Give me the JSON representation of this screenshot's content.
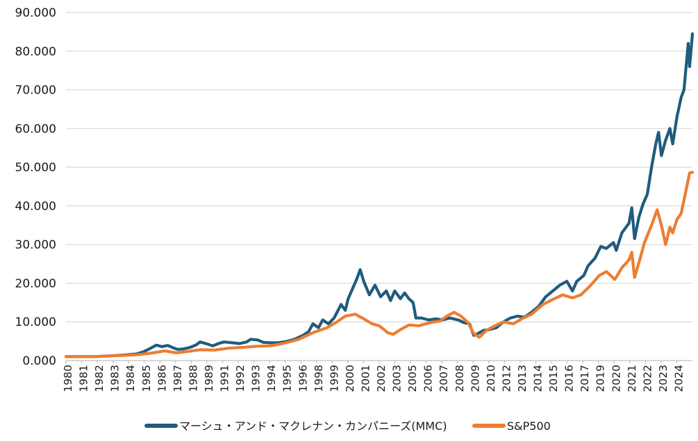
{
  "chart_data": {
    "type": "line",
    "title": "",
    "xlabel": "",
    "ylabel": "",
    "ylim": [
      0,
      90
    ],
    "xlim": [
      1980,
      2024.4
    ],
    "grid": true,
    "legend_position": "bottom",
    "y_ticks": [
      "0.000",
      "10.000",
      "20.000",
      "30.000",
      "40.000",
      "50.000",
      "60.000",
      "70.000",
      "80.000",
      "90.000"
    ],
    "x_tick_labels": [
      "1980",
      "1981",
      "1982",
      "1983",
      "1984",
      "1985",
      "1986",
      "1987",
      "1988",
      "1989",
      "1991",
      "1992",
      "1993",
      "1994",
      "1995",
      "1996",
      "1998",
      "1999",
      "2000",
      "2001",
      "2002",
      "2003",
      "2005",
      "2006",
      "2007",
      "2008",
      "2009",
      "2010",
      "2012",
      "2013",
      "2014",
      "2015",
      "2016",
      "2017",
      "2019",
      "2020",
      "2021",
      "2022",
      "2023",
      "2024"
    ],
    "series": [
      {
        "name": "マーシュ・アンド・マクレナン・カンパニーズ(MMC)",
        "color": "#1f5c7d",
        "points": [
          [
            1980.0,
            1.0
          ],
          [
            1981.0,
            1.0
          ],
          [
            1982.0,
            1.0
          ],
          [
            1983.0,
            1.2
          ],
          [
            1984.0,
            1.4
          ],
          [
            1985.0,
            1.7
          ],
          [
            1985.5,
            2.3
          ],
          [
            1986.0,
            3.2
          ],
          [
            1986.4,
            4.0
          ],
          [
            1986.8,
            3.6
          ],
          [
            1987.2,
            3.9
          ],
          [
            1987.6,
            3.3
          ],
          [
            1987.9,
            2.9
          ],
          [
            1988.3,
            3.0
          ],
          [
            1988.8,
            3.4
          ],
          [
            1989.2,
            4.0
          ],
          [
            1989.5,
            4.8
          ],
          [
            1990.0,
            4.3
          ],
          [
            1990.4,
            3.8
          ],
          [
            1990.8,
            4.4
          ],
          [
            1991.2,
            4.8
          ],
          [
            1991.8,
            4.6
          ],
          [
            1992.3,
            4.4
          ],
          [
            1992.8,
            4.8
          ],
          [
            1993.1,
            5.5
          ],
          [
            1993.6,
            5.3
          ],
          [
            1994.0,
            4.7
          ],
          [
            1994.5,
            4.6
          ],
          [
            1995.0,
            4.6
          ],
          [
            1995.6,
            4.9
          ],
          [
            1996.2,
            5.5
          ],
          [
            1996.8,
            6.5
          ],
          [
            1997.2,
            7.5
          ],
          [
            1997.5,
            9.5
          ],
          [
            1997.9,
            8.5
          ],
          [
            1998.2,
            10.5
          ],
          [
            1998.6,
            9.5
          ],
          [
            1999.0,
            11.0
          ],
          [
            1999.5,
            14.5
          ],
          [
            1999.8,
            13.0
          ],
          [
            2000.0,
            16.0
          ],
          [
            2000.3,
            18.5
          ],
          [
            2000.6,
            21.0
          ],
          [
            2000.85,
            23.5
          ],
          [
            2001.1,
            20.5
          ],
          [
            2001.5,
            17.0
          ],
          [
            2001.9,
            19.5
          ],
          [
            2002.3,
            16.5
          ],
          [
            2002.7,
            18.0
          ],
          [
            2003.0,
            15.5
          ],
          [
            2003.3,
            18.0
          ],
          [
            2003.7,
            16.0
          ],
          [
            2004.0,
            17.5
          ],
          [
            2004.3,
            16.0
          ],
          [
            2004.6,
            15.0
          ],
          [
            2004.8,
            11.0
          ],
          [
            2005.2,
            11.0
          ],
          [
            2005.7,
            10.5
          ],
          [
            2006.2,
            10.8
          ],
          [
            2006.7,
            10.5
          ],
          [
            2007.2,
            11.0
          ],
          [
            2007.8,
            10.5
          ],
          [
            2008.2,
            9.8
          ],
          [
            2008.6,
            9.5
          ],
          [
            2008.9,
            6.5
          ],
          [
            2009.2,
            7.0
          ],
          [
            2009.6,
            7.8
          ],
          [
            2010.0,
            8.0
          ],
          [
            2010.5,
            8.5
          ],
          [
            2011.0,
            10.0
          ],
          [
            2011.5,
            11.0
          ],
          [
            2012.0,
            11.5
          ],
          [
            2012.5,
            11.2
          ],
          [
            2013.0,
            12.5
          ],
          [
            2013.5,
            14.0
          ],
          [
            2014.0,
            16.5
          ],
          [
            2014.5,
            18.0
          ],
          [
            2015.0,
            19.5
          ],
          [
            2015.5,
            20.5
          ],
          [
            2015.9,
            18.0
          ],
          [
            2016.2,
            20.5
          ],
          [
            2016.7,
            22.0
          ],
          [
            2017.0,
            24.5
          ],
          [
            2017.5,
            26.5
          ],
          [
            2017.9,
            29.5
          ],
          [
            2018.3,
            29.0
          ],
          [
            2018.8,
            30.5
          ],
          [
            2019.0,
            28.5
          ],
          [
            2019.4,
            33.0
          ],
          [
            2019.9,
            35.5
          ],
          [
            2020.1,
            39.5
          ],
          [
            2020.3,
            31.5
          ],
          [
            2020.6,
            37.0
          ],
          [
            2020.9,
            40.5
          ],
          [
            2021.2,
            43.0
          ],
          [
            2021.5,
            50.0
          ],
          [
            2021.8,
            56.0
          ],
          [
            2022.0,
            59.0
          ],
          [
            2022.2,
            53.0
          ],
          [
            2022.5,
            57.0
          ],
          [
            2022.8,
            60.0
          ],
          [
            2023.0,
            56.0
          ],
          [
            2023.3,
            63.0
          ],
          [
            2023.6,
            68.0
          ],
          [
            2023.8,
            70.0
          ],
          [
            2024.0,
            78.0
          ],
          [
            2024.1,
            82.0
          ],
          [
            2024.2,
            76.0
          ],
          [
            2024.4,
            84.5
          ]
        ]
      },
      {
        "name": "S&P500",
        "color": "#ed7d31",
        "points": [
          [
            1980.0,
            1.0
          ],
          [
            1981.0,
            1.0
          ],
          [
            1982.0,
            1.0
          ],
          [
            1983.0,
            1.2
          ],
          [
            1984.0,
            1.3
          ],
          [
            1985.0,
            1.5
          ],
          [
            1986.0,
            1.9
          ],
          [
            1987.0,
            2.5
          ],
          [
            1987.8,
            2.0
          ],
          [
            1988.5,
            2.3
          ],
          [
            1989.5,
            2.8
          ],
          [
            1990.5,
            2.7
          ],
          [
            1991.5,
            3.2
          ],
          [
            1992.5,
            3.4
          ],
          [
            1993.5,
            3.7
          ],
          [
            1994.5,
            3.8
          ],
          [
            1995.5,
            4.5
          ],
          [
            1996.5,
            5.5
          ],
          [
            1997.5,
            7.2
          ],
          [
            1998.5,
            8.5
          ],
          [
            1999.2,
            10.0
          ],
          [
            1999.8,
            11.5
          ],
          [
            2000.5,
            12.0
          ],
          [
            2001.0,
            11.0
          ],
          [
            2001.7,
            9.5
          ],
          [
            2002.2,
            9.0
          ],
          [
            2002.8,
            7.2
          ],
          [
            2003.2,
            6.8
          ],
          [
            2003.7,
            8.0
          ],
          [
            2004.3,
            9.2
          ],
          [
            2005.0,
            9.0
          ],
          [
            2005.8,
            9.8
          ],
          [
            2006.5,
            10.2
          ],
          [
            2007.0,
            11.5
          ],
          [
            2007.5,
            12.5
          ],
          [
            2008.0,
            11.5
          ],
          [
            2008.5,
            9.8
          ],
          [
            2008.9,
            7.0
          ],
          [
            2009.3,
            6.0
          ],
          [
            2009.8,
            7.8
          ],
          [
            2010.3,
            8.8
          ],
          [
            2011.0,
            10.0
          ],
          [
            2011.7,
            9.5
          ],
          [
            2012.3,
            10.8
          ],
          [
            2013.0,
            12.0
          ],
          [
            2013.8,
            14.5
          ],
          [
            2014.5,
            15.8
          ],
          [
            2015.2,
            17.0
          ],
          [
            2015.9,
            16.2
          ],
          [
            2016.5,
            17.0
          ],
          [
            2017.2,
            19.5
          ],
          [
            2017.8,
            22.0
          ],
          [
            2018.3,
            23.0
          ],
          [
            2018.9,
            21.0
          ],
          [
            2019.4,
            24.0
          ],
          [
            2019.9,
            26.0
          ],
          [
            2020.1,
            28.0
          ],
          [
            2020.3,
            21.5
          ],
          [
            2020.7,
            26.5
          ],
          [
            2021.0,
            30.5
          ],
          [
            2021.5,
            35.0
          ],
          [
            2021.9,
            39.0
          ],
          [
            2022.2,
            35.0
          ],
          [
            2022.5,
            30.0
          ],
          [
            2022.8,
            34.5
          ],
          [
            2023.0,
            33.0
          ],
          [
            2023.3,
            36.5
          ],
          [
            2023.6,
            38.0
          ],
          [
            2023.8,
            41.5
          ],
          [
            2024.0,
            45.0
          ],
          [
            2024.2,
            48.5
          ],
          [
            2024.4,
            48.7
          ]
        ]
      }
    ]
  }
}
